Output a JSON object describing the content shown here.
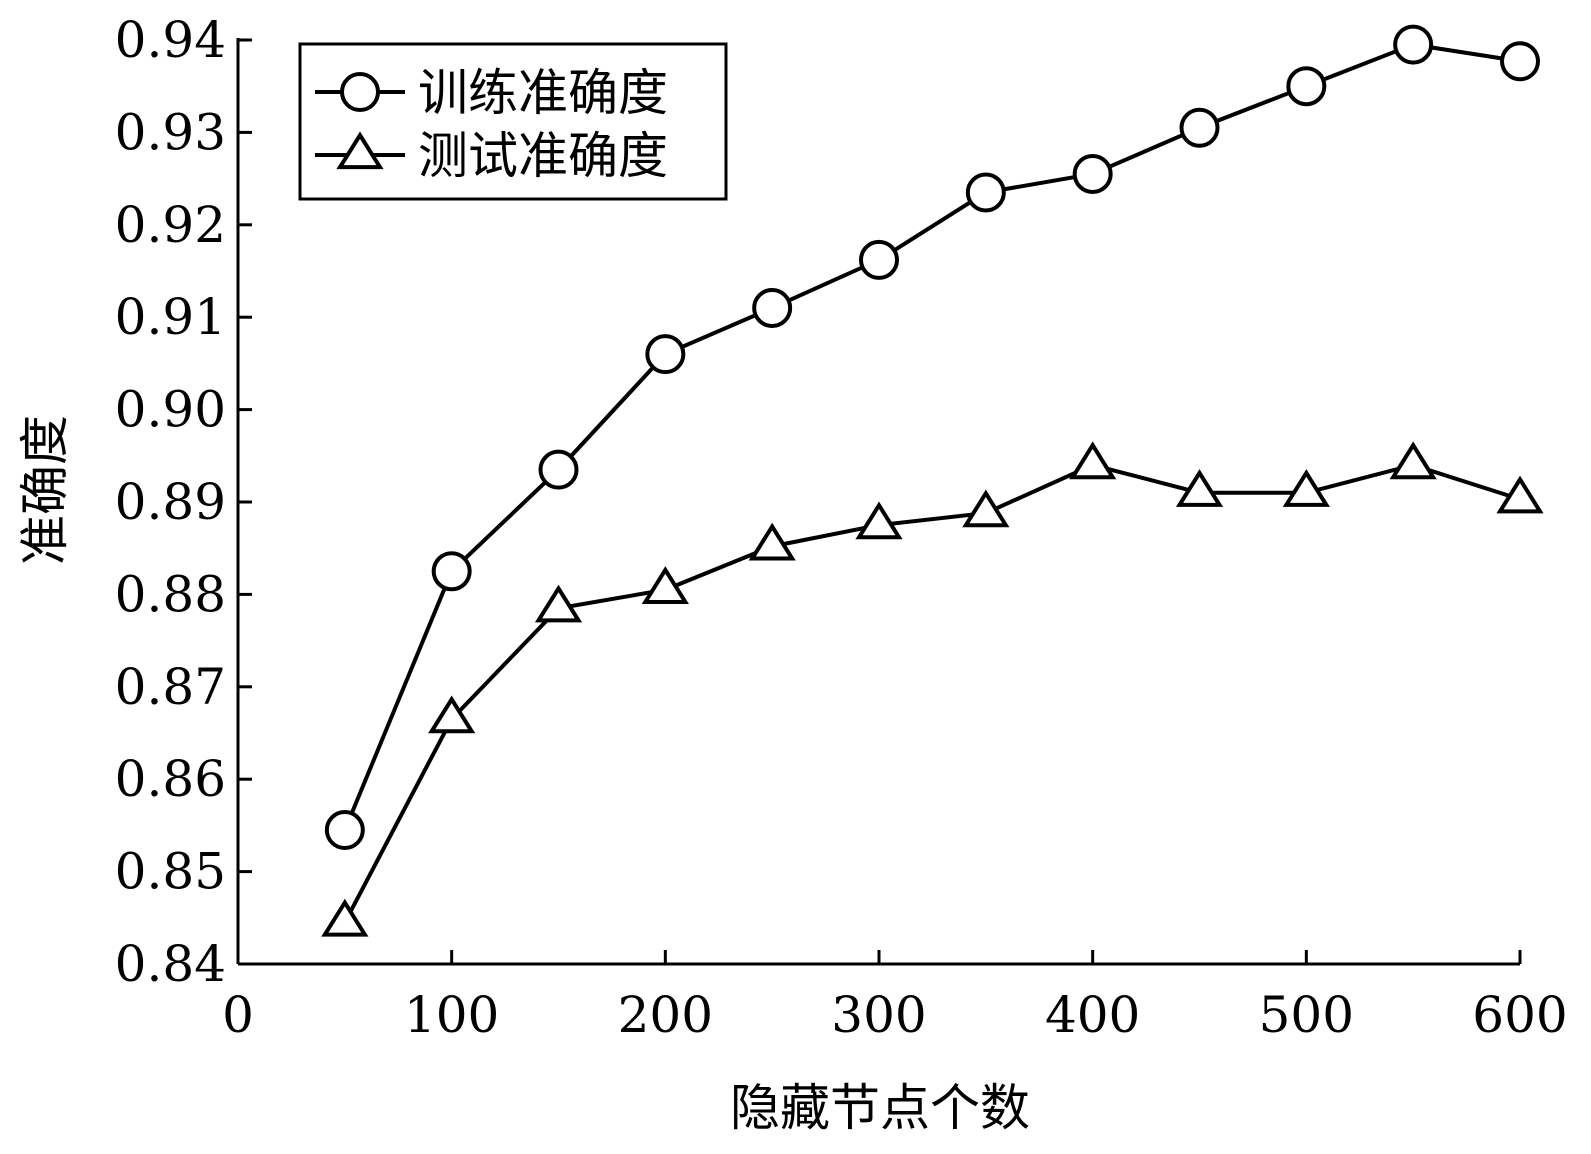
{
  "chart_data": {
    "type": "line",
    "xlabel": "隐藏节点个数",
    "ylabel": "准确度",
    "xlim": [
      0,
      600
    ],
    "ylim": [
      0.84,
      0.94
    ],
    "xticks": [
      0,
      100,
      200,
      300,
      400,
      500,
      600
    ],
    "yticks": [
      0.84,
      0.85,
      0.86,
      0.87,
      0.88,
      0.89,
      0.9,
      0.91,
      0.92,
      0.93,
      0.94
    ],
    "xtick_labels": [
      "0",
      "100",
      "200",
      "300",
      "400",
      "500",
      "600"
    ],
    "ytick_labels": [
      "0.84",
      "0.85",
      "0.86",
      "0.87",
      "0.88",
      "0.89",
      "0.90",
      "0.91",
      "0.92",
      "0.93",
      "0.94"
    ],
    "legend_position": "top-left",
    "grid": false,
    "x": [
      50,
      100,
      150,
      200,
      250,
      300,
      350,
      400,
      450,
      500,
      550,
      600
    ],
    "series": [
      {
        "name": "训练准确度",
        "marker": "circle",
        "color": "#000000",
        "values": [
          0.8545,
          0.8825,
          0.8935,
          0.906,
          0.911,
          0.9162,
          0.9235,
          0.9255,
          0.9305,
          0.935,
          0.9395,
          0.9377
        ]
      },
      {
        "name": "测试准确度",
        "marker": "triangle",
        "color": "#000000",
        "values": [
          0.8445,
          0.8665,
          0.8785,
          0.8805,
          0.8852,
          0.8875,
          0.8888,
          0.894,
          0.891,
          0.891,
          0.894,
          0.8903
        ]
      }
    ]
  }
}
